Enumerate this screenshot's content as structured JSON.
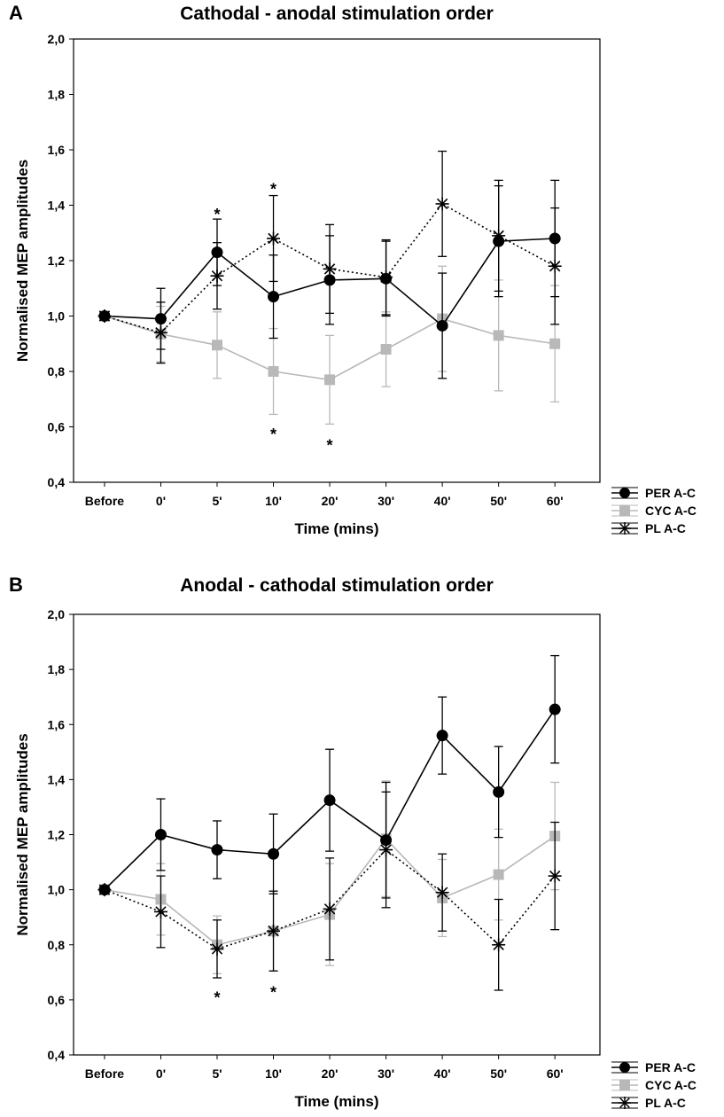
{
  "chart_data": [
    {
      "panel": "A",
      "type": "line",
      "title": "Cathodal - anodal stimulation  order",
      "xlabel": "Time (mins)",
      "ylabel": "Normalised MEP amplitudes",
      "categories": [
        "Before",
        "0'",
        "5'",
        "10'",
        "20'",
        "30'",
        "40'",
        "50'",
        "60'"
      ],
      "ylim": [
        0.4,
        2.0
      ],
      "yticks": [
        "0,4",
        "0,6",
        "0,8",
        "1,0",
        "1,2",
        "1,4",
        "1,6",
        "1,8",
        "2,0"
      ],
      "grid": false,
      "legend_position": "bottom-right",
      "series": [
        {
          "name": "PER A-C",
          "marker": "circle",
          "line": "solid",
          "color": "#000000",
          "values": [
            1.0,
            0.99,
            1.23,
            1.07,
            1.13,
            1.135,
            0.965,
            1.27,
            1.28
          ],
          "errors": [
            0.0,
            0.11,
            0.12,
            0.15,
            0.16,
            0.135,
            0.19,
            0.2,
            0.21
          ]
        },
        {
          "name": "CYC A-C",
          "marker": "square",
          "line": "solid",
          "color": "#b8b8b8",
          "values": [
            1.0,
            0.935,
            0.895,
            0.8,
            0.77,
            0.88,
            0.99,
            0.93,
            0.9
          ],
          "errors": [
            0.0,
            0.1,
            0.12,
            0.155,
            0.16,
            0.135,
            0.19,
            0.2,
            0.21
          ]
        },
        {
          "name": "PL A-C",
          "marker": "asterisk",
          "line": "dotted",
          "color": "#000000",
          "values": [
            1.0,
            0.94,
            1.145,
            1.28,
            1.17,
            1.14,
            1.405,
            1.29,
            1.18
          ],
          "errors": [
            0.0,
            0.11,
            0.12,
            0.155,
            0.16,
            0.135,
            0.19,
            0.2,
            0.21
          ]
        }
      ],
      "annotations": [
        {
          "text": "*",
          "category": "5'",
          "value": 1.38
        },
        {
          "text": "*",
          "category": "10'",
          "value": 1.47
        },
        {
          "text": "*",
          "category": "10'",
          "value": 0.585
        },
        {
          "text": "*",
          "category": "20'",
          "value": 0.545
        }
      ]
    },
    {
      "panel": "B",
      "type": "line",
      "title": "Anodal - cathodal stimulation  order",
      "xlabel": "Time (mins)",
      "ylabel": "Normalised MEP amplitudes",
      "categories": [
        "Before",
        "0'",
        "5'",
        "10'",
        "20'",
        "30'",
        "40'",
        "50'",
        "60'"
      ],
      "ylim": [
        0.4,
        2.0
      ],
      "yticks": [
        "0,4",
        "0,6",
        "0,8",
        "1,0",
        "1,2",
        "1,4",
        "1,6",
        "1,8",
        "2,0"
      ],
      "grid": false,
      "legend_position": "bottom-right",
      "series": [
        {
          "name": "PER A-C",
          "marker": "circle",
          "line": "solid",
          "color": "#000000",
          "values": [
            1.0,
            1.2,
            1.145,
            1.13,
            1.325,
            1.18,
            1.56,
            1.355,
            1.655
          ],
          "errors": [
            0.0,
            0.13,
            0.105,
            0.145,
            0.185,
            0.21,
            0.14,
            0.165,
            0.195
          ]
        },
        {
          "name": "CYC A-C",
          "marker": "square",
          "line": "solid",
          "color": "#b8b8b8",
          "values": [
            1.0,
            0.965,
            0.8,
            0.85,
            0.91,
            1.185,
            0.97,
            1.055,
            1.195
          ],
          "errors": [
            0.0,
            0.13,
            0.105,
            0.145,
            0.185,
            0.21,
            0.14,
            0.165,
            0.195
          ]
        },
        {
          "name": "PL A-C",
          "marker": "asterisk",
          "line": "dotted",
          "color": "#000000",
          "values": [
            1.0,
            0.92,
            0.785,
            0.85,
            0.93,
            1.145,
            0.99,
            0.8,
            1.05
          ],
          "errors": [
            0.0,
            0.13,
            0.105,
            0.145,
            0.185,
            0.21,
            0.14,
            0.165,
            0.195
          ]
        }
      ],
      "annotations": [
        {
          "text": "*",
          "category": "5'",
          "value": 0.62
        },
        {
          "text": "*",
          "category": "10'",
          "value": 0.64
        }
      ]
    }
  ]
}
